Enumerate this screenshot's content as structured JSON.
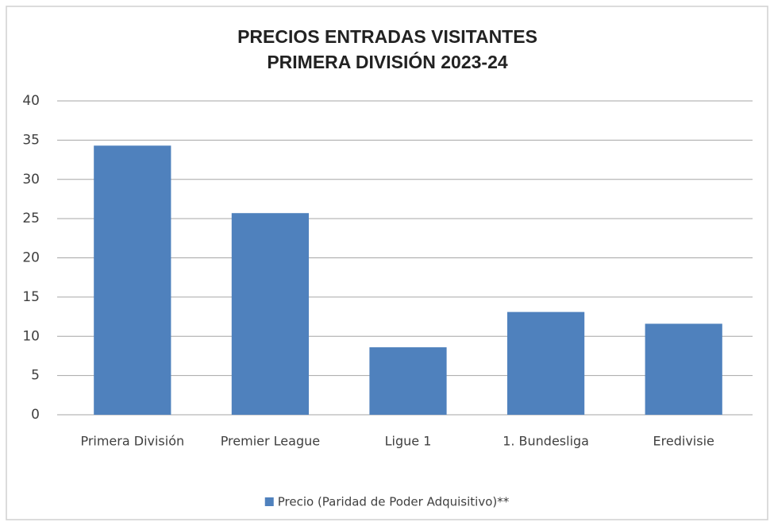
{
  "chart_data": {
    "type": "bar",
    "title": [
      "PRECIOS ENTRADAS VISITANTES",
      "PRIMERA DIVISIÓN 2023-24"
    ],
    "categories": [
      "Primera División",
      "Premier League",
      "Ligue 1",
      "1. Bundesliga",
      "Eredivisie"
    ],
    "series": [
      {
        "name": "Precio (Paridad de Poder Adquisitivo)**",
        "color": "#4f81bd",
        "values": [
          34.3,
          25.7,
          8.6,
          13.1,
          11.6
        ]
      }
    ],
    "ylim": [
      0,
      40
    ],
    "yticks": [
      0,
      5,
      10,
      15,
      20,
      25,
      30,
      35,
      40
    ],
    "grid": true,
    "legend": "bottom"
  }
}
